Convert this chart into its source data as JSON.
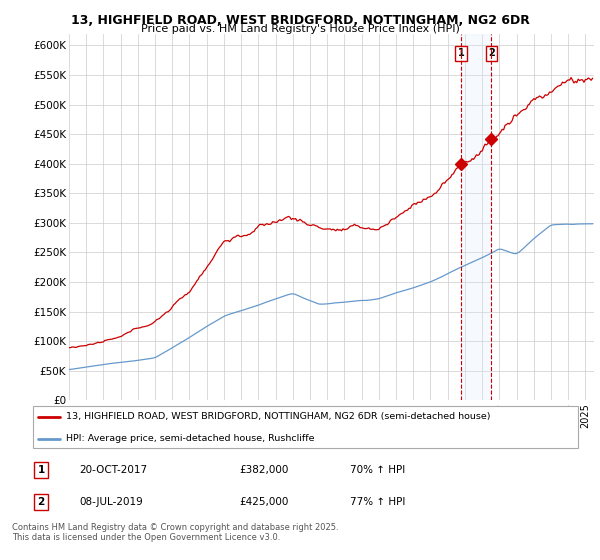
{
  "title_line1": "13, HIGHFIELD ROAD, WEST BRIDGFORD, NOTTINGHAM, NG2 6DR",
  "title_line2": "Price paid vs. HM Land Registry's House Price Index (HPI)",
  "ylabel_ticks": [
    "£0",
    "£50K",
    "£100K",
    "£150K",
    "£200K",
    "£250K",
    "£300K",
    "£350K",
    "£400K",
    "£450K",
    "£500K",
    "£550K",
    "£600K"
  ],
  "ytick_values": [
    0,
    50000,
    100000,
    150000,
    200000,
    250000,
    300000,
    350000,
    400000,
    450000,
    500000,
    550000,
    600000
  ],
  "ylim": [
    0,
    620000
  ],
  "xlim_start": 1995.0,
  "xlim_end": 2025.5,
  "legend_line1": "13, HIGHFIELD ROAD, WEST BRIDGFORD, NOTTINGHAM, NG2 6DR (semi-detached house)",
  "legend_line2": "HPI: Average price, semi-detached house, Rushcliffe",
  "red_color": "#cc0000",
  "blue_color": "#6699cc",
  "blue_fill_color": "#ddeeff",
  "footnote": "Contains HM Land Registry data © Crown copyright and database right 2025.\nThis data is licensed under the Open Government Licence v3.0.",
  "background_color": "#ffffff",
  "grid_color": "#cccccc",
  "sale1_x": 2017.79,
  "sale1_price": 382000,
  "sale2_x": 2019.54,
  "sale2_price": 425000,
  "xtick_start": 1995,
  "xtick_end": 2025
}
